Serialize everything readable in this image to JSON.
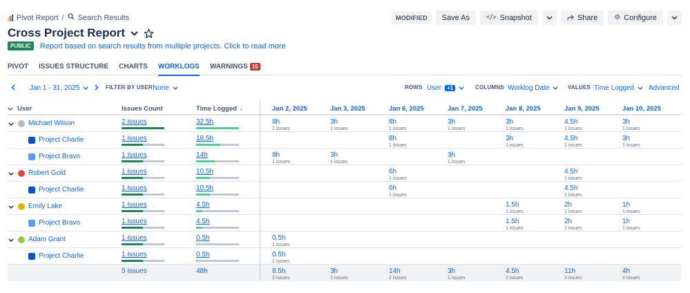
{
  "breadcrumb": {
    "report": "Pivot Report",
    "separator": "/",
    "search": "Search Results"
  },
  "header": {
    "title": "Cross Project Report",
    "status_badge": "PUBLIC",
    "description": "Report based on search results from multiple projects. Click to read more",
    "modified": "MODIFIED",
    "save_as": "Save As",
    "snapshot": "Snapshot",
    "share": "Share",
    "configure": "Configure"
  },
  "icons": {
    "breadcrumb_bar": "bar-chart-icon",
    "search": "search-icon",
    "snapshot": "code-icon",
    "share": "share-icon",
    "configure": "gear-icon",
    "favorite": "star-icon",
    "dropdown": "chevron-down-icon",
    "prev": "chevron-left-icon",
    "next": "chevron-right-icon",
    "sort": "arrow-down-icon"
  },
  "colors": {
    "link_blue": "#0c66e4",
    "public_green": "#1f845a",
    "bar_dark_green": "#1f845a",
    "bar_light_green": "#4bce97",
    "warning_red": "#c9372c"
  },
  "tabs": [
    {
      "label": "PIVOT"
    },
    {
      "label": "ISSUES STRUCTURE"
    },
    {
      "label": "CHARTS"
    },
    {
      "label": "WORKLOGS",
      "active": true
    },
    {
      "label": "WARNINGS",
      "badge": "15"
    }
  ],
  "filters": {
    "date_range": "Jan 1 - 31, 2025",
    "filter_by_user_label": "FILTER BY USER",
    "filter_by_user_value": "None",
    "rows_label": "ROWS",
    "rows_value": "User",
    "rows_extra": "+1",
    "columns_label": "COLUMNS",
    "columns_value": "Worklog Date",
    "values_label": "VALUES",
    "values_value": "Time Logged",
    "advanced": "Advanced"
  },
  "table": {
    "headers": {
      "user": "User",
      "issues_count": "Issues Count",
      "time_logged": "Time Logged",
      "dates": [
        "Jan 2, 2025",
        "Jan 3, 2025",
        "Jan 6, 2025",
        "Jan 7, 2025",
        "Jan 8, 2025",
        "Jan 9, 2025",
        "Jan 10, 2025"
      ]
    },
    "rows": [
      {
        "type": "user",
        "name": "Michael Wilson",
        "issues": "2 issues",
        "issues_fill": 1.0,
        "time": "32.5h",
        "time_fill": 1.0,
        "cells": [
          [
            "8h",
            "1 issues"
          ],
          [
            "3h",
            "1 issues"
          ],
          [
            "8h",
            "1 issues"
          ],
          [
            "3h",
            "1 issues"
          ],
          [
            "3h",
            "1 issues"
          ],
          [
            "4.5h",
            "1 issues"
          ],
          [
            "3h",
            "1 issues"
          ]
        ]
      },
      {
        "type": "project",
        "name": "Project Charlie",
        "issues": "1 issues",
        "issues_fill": 0.5,
        "time": "18.5h",
        "time_fill": 0.57,
        "cells": [
          null,
          null,
          [
            "8h",
            "1 issues"
          ],
          null,
          [
            "3h",
            "1 issues"
          ],
          [
            "4.5h",
            "1 issues"
          ],
          [
            "3h",
            "1 issues"
          ]
        ]
      },
      {
        "type": "project",
        "name": "Project Bravo",
        "issues": "1 issues",
        "issues_fill": 0.5,
        "time": "14h",
        "time_fill": 0.43,
        "cells": [
          [
            "8h",
            "1 issues"
          ],
          [
            "3h",
            "1 issues"
          ],
          null,
          [
            "3h",
            "1 issues"
          ],
          null,
          null,
          null
        ]
      },
      {
        "type": "user",
        "name": "Robert Gold",
        "issues": "1 issues",
        "issues_fill": 0.5,
        "time": "10.5h",
        "time_fill": 0.32,
        "cells": [
          null,
          null,
          [
            "6h",
            "1 issues"
          ],
          null,
          null,
          [
            "4.5h",
            "1 issues"
          ],
          null
        ]
      },
      {
        "type": "project",
        "name": "Project Charlie",
        "issues": "1 issues",
        "issues_fill": 0.5,
        "time": "10.5h",
        "time_fill": 0.32,
        "cells": [
          null,
          null,
          [
            "6h",
            "1 issues"
          ],
          null,
          null,
          [
            "4.5h",
            "1 issues"
          ],
          null
        ]
      },
      {
        "type": "user",
        "name": "Emily Lake",
        "issues": "1 issues",
        "issues_fill": 0.5,
        "time": "4.5h",
        "time_fill": 0.14,
        "cells": [
          null,
          null,
          null,
          null,
          [
            "1.5h",
            "1 issues"
          ],
          [
            "2h",
            "1 issues"
          ],
          [
            "1h",
            "1 issues"
          ]
        ]
      },
      {
        "type": "project",
        "name": "Project Bravo",
        "issues": "1 issues",
        "issues_fill": 0.5,
        "time": "4.5h",
        "time_fill": 0.14,
        "cells": [
          null,
          null,
          null,
          null,
          [
            "1.5h",
            "1 issues"
          ],
          [
            "2h",
            "1 issues"
          ],
          [
            "1h",
            "1 issues"
          ]
        ]
      },
      {
        "type": "user",
        "name": "Adam Grant",
        "issues": "1 issues",
        "issues_fill": 0.5,
        "time": "0.5h",
        "time_fill": 0.02,
        "cells": [
          [
            "0.5h",
            "1 issues"
          ],
          null,
          null,
          null,
          null,
          null,
          null
        ]
      },
      {
        "type": "project",
        "name": "Project Charlie",
        "issues": "1 issues",
        "issues_fill": 0.5,
        "time": "0.5h",
        "time_fill": 0.02,
        "cells": [
          [
            "0.5h",
            "1 issues"
          ],
          null,
          null,
          null,
          null,
          null,
          null
        ]
      }
    ],
    "total": {
      "issues": "5 issues",
      "time": "48h",
      "cells": [
        [
          "8.5h",
          "2 issues"
        ],
        [
          "3h",
          "1 issues"
        ],
        [
          "14h",
          "2 issues"
        ],
        [
          "3h",
          "1 issues"
        ],
        [
          "4.5h",
          "2 issues"
        ],
        [
          "11h",
          "3 issues"
        ],
        [
          "4h",
          "2 issues"
        ]
      ]
    }
  }
}
